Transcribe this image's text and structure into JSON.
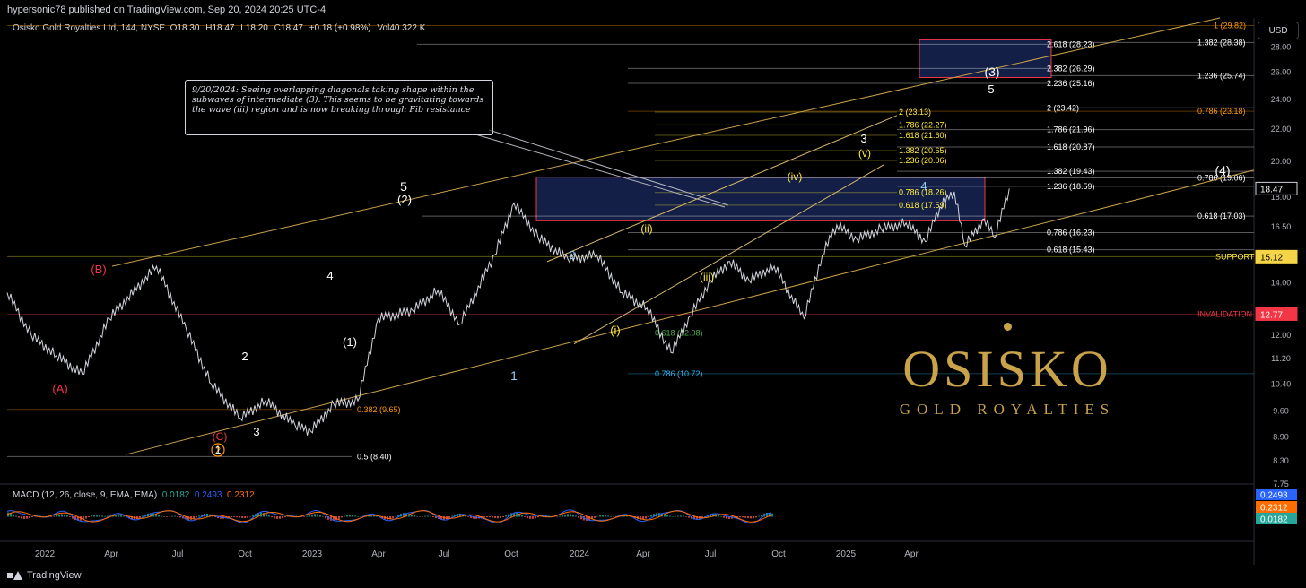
{
  "header": {
    "publisher": "hypersonic78 published on TradingView.com, Sep 20, 2024 20:25 UTC-4"
  },
  "symbol": {
    "name": "Osisko Gold Royalties Ltd, 144, NYSE",
    "open_label": "O",
    "open": "18.30",
    "high_label": "H",
    "high": "18.47",
    "low_label": "L",
    "low": "18.20",
    "close_label": "C",
    "close": "18.47",
    "change": "+0.18 (+0.98%)",
    "vol_label": "Vol",
    "vol": "40.322 K"
  },
  "currency_button": "USD",
  "annotation_note": "9/20/2024: Seeing overlapping diagonals taking shape within the subwaves of intermediate (3).  This seems to be gravitating towards the wave (iii) region and is now breaking through Fib resistance",
  "logo": {
    "name": "OSISKO",
    "sub": "GOLD ROYALTIES"
  },
  "macd": {
    "label": "MACD (12, 26, close, 9, EMA, EMA)",
    "hist": "0.0182",
    "macd": "0.2493",
    "signal": "0.2312",
    "colors": {
      "hist": "#26a69a",
      "macd": "#2962ff",
      "signal": "#ff6d00"
    }
  },
  "footer": {
    "brand": "TradingView"
  },
  "chart_data": {
    "type": "line",
    "title": "Osisko Gold Royalties Ltd, 144, NYSE",
    "y_scale": "log",
    "ylim": [
      7.75,
      30.5
    ],
    "y_ticks": [
      "28.00",
      "26.00",
      "24.00",
      "22.00",
      "20.00",
      "18.00",
      "16.50",
      "15.12",
      "14.00",
      "12.77",
      "12.00",
      "11.20",
      "10.40",
      "9.60",
      "8.90",
      "8.30",
      "7.75"
    ],
    "x_ticks": [
      "2022",
      "Apr",
      "Jul",
      "Oct",
      "2023",
      "Apr",
      "Jul",
      "Oct",
      "2024",
      "Apr",
      "Jul",
      "Oct",
      "2025",
      "Apr"
    ],
    "last_price": "18.47",
    "price_labels": [
      {
        "text": "18.47",
        "value": 18.47,
        "color": "#ffffff",
        "bg": "#000000"
      },
      {
        "text": "15.12",
        "value": 15.12,
        "color": "#000000",
        "bg": "#f5d547"
      },
      {
        "text": "12.77",
        "value": 12.77,
        "color": "#ffffff",
        "bg": "#f23645"
      }
    ],
    "series": [
      {
        "values": [
          [
            "2021-11-15",
            13.6
          ],
          [
            "2021-12-10",
            12.0
          ],
          [
            "2022-01-05",
            11.3
          ],
          [
            "2022-02-01",
            10.7
          ],
          [
            "2022-03-01",
            12.6
          ],
          [
            "2022-04-19",
            14.7
          ],
          [
            "2022-05-20",
            12.2
          ],
          [
            "2022-06-15",
            10.4
          ],
          [
            "2022-07-15",
            9.4
          ],
          [
            "2022-08-10",
            9.9
          ],
          [
            "2022-09-10",
            9.2
          ],
          [
            "2022-09-26",
            9.05
          ],
          [
            "2022-10-20",
            9.8
          ],
          [
            "2022-11-14",
            9.9
          ],
          [
            "2022-12-05",
            12.6
          ],
          [
            "2023-01-10",
            12.9
          ],
          [
            "2023-02-05",
            13.7
          ],
          [
            "2023-02-28",
            12.4
          ],
          [
            "2023-04-05",
            15.2
          ],
          [
            "2023-04-25",
            17.7
          ],
          [
            "2023-05-20",
            16.0
          ],
          [
            "2023-06-20",
            15.0
          ],
          [
            "2023-07-20",
            15.2
          ],
          [
            "2023-08-15",
            13.6
          ],
          [
            "2023-09-10",
            13.0
          ],
          [
            "2023-10-05",
            11.4
          ],
          [
            "2023-10-25",
            12.7
          ],
          [
            "2023-11-15",
            14.1
          ],
          [
            "2023-12-05",
            14.9
          ],
          [
            "2023-12-25",
            14.1
          ],
          [
            "2024-01-20",
            14.7
          ],
          [
            "2024-02-20",
            12.6
          ],
          [
            "2024-03-10",
            15.2
          ],
          [
            "2024-03-25",
            16.6
          ],
          [
            "2024-04-15",
            15.9
          ],
          [
            "2024-05-10",
            16.4
          ],
          [
            "2024-06-05",
            16.7
          ],
          [
            "2024-06-25",
            15.8
          ],
          [
            "2024-07-10",
            17.5
          ],
          [
            "2024-07-25",
            18.3
          ],
          [
            "2024-08-05",
            15.6
          ],
          [
            "2024-08-25",
            16.9
          ],
          [
            "2024-09-05",
            16.0
          ],
          [
            "2024-09-20",
            18.47
          ]
        ]
      }
    ],
    "fib_levels": [
      {
        "text": "1 (29.82)",
        "value": 29.82,
        "color": "#ff9800"
      },
      {
        "text": "1.382 (28.38)",
        "value": 28.38,
        "color": "#ffffff"
      },
      {
        "text": "2.618 (28.23)",
        "value": 28.23,
        "color": "#ffffff"
      },
      {
        "text": "2.382 (26.29)",
        "value": 26.29,
        "color": "#ffffff"
      },
      {
        "text": "1.236 (25.74)",
        "value": 25.74,
        "color": "#ffffff"
      },
      {
        "text": "2.236 (25.16)",
        "value": 25.16,
        "color": "#ffffff"
      },
      {
        "text": "2 (23.42)",
        "value": 23.42,
        "color": "#ffffff"
      },
      {
        "text": "0.786 (23.18)",
        "value": 23.18,
        "color": "#ff9800"
      },
      {
        "text": "2 (23.13)",
        "value": 23.13,
        "color": "#ffeb3b"
      },
      {
        "text": "1.786 (22.27)",
        "value": 22.27,
        "color": "#ffeb3b"
      },
      {
        "text": "1.786 (21.96)",
        "value": 21.96,
        "color": "#ffffff"
      },
      {
        "text": "1.618 (21.60)",
        "value": 21.6,
        "color": "#ffeb3b"
      },
      {
        "text": "1.618 (20.87)",
        "value": 20.87,
        "color": "#ffffff"
      },
      {
        "text": "1.382 (20.65)",
        "value": 20.65,
        "color": "#ffeb3b"
      },
      {
        "text": "1.236 (20.06)",
        "value": 20.06,
        "color": "#ffeb3b"
      },
      {
        "text": "1.382 (19.43)",
        "value": 19.43,
        "color": "#ffffff"
      },
      {
        "text": "0.786 (19.06)",
        "value": 19.06,
        "color": "#ffffff"
      },
      {
        "text": "1.236 (18.59)",
        "value": 18.59,
        "color": "#ffffff"
      },
      {
        "text": "0.786 (18.26)",
        "value": 18.26,
        "color": "#ffeb3b"
      },
      {
        "text": "0.618 (17.59)",
        "value": 17.59,
        "color": "#ffeb3b"
      },
      {
        "text": "0.618 (17.03)",
        "value": 17.03,
        "color": "#ffffff"
      },
      {
        "text": "0.786 (16.23)",
        "value": 16.23,
        "color": "#ffffff"
      },
      {
        "text": "0.618 (15.43)",
        "value": 15.43,
        "color": "#ffffff"
      },
      {
        "text": "SUPPORT",
        "value": 15.12,
        "color": "#ffeb3b"
      },
      {
        "text": "INVALIDATION",
        "value": 12.77,
        "color": "#f23645"
      },
      {
        "text": "0.618 (12.08)",
        "value": 12.08,
        "color": "#4caf50"
      },
      {
        "text": "0.786 (10.72)",
        "value": 10.72,
        "color": "#29b6f6"
      },
      {
        "text": "0.382 (9.65)",
        "value": 9.65,
        "color": "#ff9800"
      },
      {
        "text": "0.5 (8.40)",
        "value": 8.4,
        "color": "#ffffff"
      }
    ],
    "wave_labels": [
      {
        "text": "(A)",
        "color": "#f23645"
      },
      {
        "text": "(B)",
        "color": "#f23645"
      },
      {
        "text": "(C)",
        "color": "#f23645"
      },
      {
        "text": "2",
        "color": "#ff9800",
        "circled": true
      },
      {
        "text": "1",
        "color": "#ffffff"
      },
      {
        "text": "2",
        "color": "#ffffff"
      },
      {
        "text": "3",
        "color": "#ffffff"
      },
      {
        "text": "4",
        "color": "#ffffff"
      },
      {
        "text": "(1)",
        "color": "#ffffff"
      },
      {
        "text": "5",
        "color": "#ffffff"
      },
      {
        "text": "(2)",
        "color": "#ffffff"
      },
      {
        "text": "1",
        "color": "#90caf9"
      },
      {
        "text": "2",
        "color": "#90caf9"
      },
      {
        "text": "(i)",
        "color": "#ffeb3b"
      },
      {
        "text": "(ii)",
        "color": "#ffeb3b"
      },
      {
        "text": "(iii)",
        "color": "#ffeb3b"
      },
      {
        "text": "(iv)",
        "color": "#ffeb3b"
      },
      {
        "text": "(v)",
        "color": "#ffeb3b"
      },
      {
        "text": "3",
        "color": "#ffffff"
      },
      {
        "text": "4",
        "color": "#90caf9"
      },
      {
        "text": "(3)",
        "color": "#ffffff"
      },
      {
        "text": "5",
        "color": "#ffffff"
      },
      {
        "text": "(4)",
        "color": "#ffffff"
      }
    ]
  }
}
